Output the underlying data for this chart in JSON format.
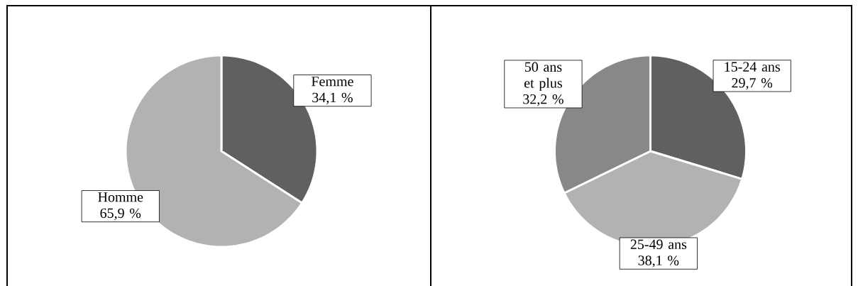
{
  "chart_data": [
    {
      "type": "pie",
      "categories": [
        "Femme",
        "Homme"
      ],
      "values": [
        34.1,
        65.9
      ],
      "colors": [
        "#606060",
        "#b2b2b2"
      ],
      "value_labels": [
        "34,1 %",
        "65,9 %"
      ]
    },
    {
      "type": "pie",
      "categories": [
        "15-24 ans",
        "25-49 ans",
        "50 ans et plus"
      ],
      "values": [
        29.7,
        38.1,
        32.2
      ],
      "colors": [
        "#606060",
        "#b2b2b2",
        "#888888"
      ],
      "value_labels": [
        "29,7 %",
        "38,1 %",
        "32,2 %"
      ]
    }
  ]
}
